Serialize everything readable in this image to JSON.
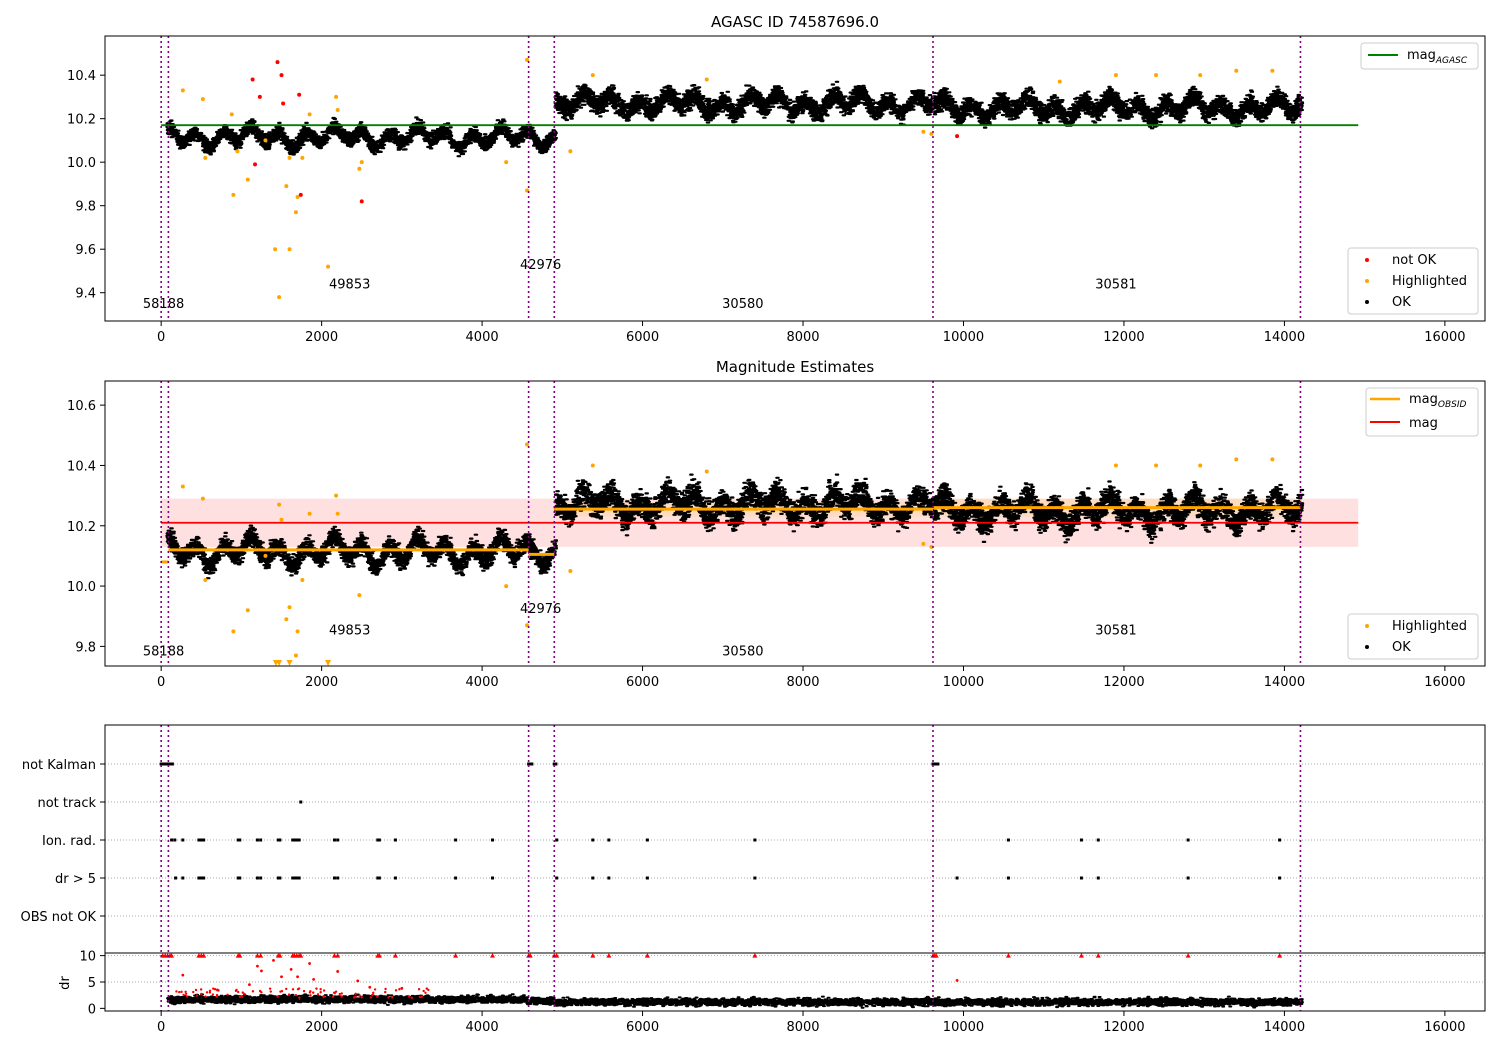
{
  "chart_data": [
    {
      "type": "scatter",
      "title": "AGASC ID 74587696.0",
      "xlim": [
        -700,
        16500
      ],
      "ylim": [
        9.27,
        10.58
      ],
      "xticks": [
        0,
        2000,
        4000,
        6000,
        8000,
        10000,
        12000,
        14000,
        16000
      ],
      "xtick_labels": [
        "0",
        "2000",
        "4000",
        "6000",
        "8000",
        "10000",
        "12000",
        "14000",
        "16000"
      ],
      "yticks": [
        9.4,
        9.6,
        9.8,
        10.0,
        10.2,
        10.4
      ],
      "ytick_labels": [
        "9.4",
        "9.6",
        "9.8",
        "10.0",
        "10.2",
        "10.4"
      ],
      "vlines": [
        0,
        90,
        4580,
        4900,
        9620,
        14200
      ],
      "obsid_labels": [
        {
          "text": "58188",
          "x": 30,
          "y": 9.33
        },
        {
          "text": "49853",
          "x": 2350,
          "y": 9.42
        },
        {
          "text": "42976",
          "x": 4730,
          "y": 9.51
        },
        {
          "text": "30580",
          "x": 7250,
          "y": 9.33
        },
        {
          "text": "30581",
          "x": 11900,
          "y": 9.42
        }
      ],
      "reference_lines": [
        {
          "name": "mag_AGASC",
          "y": 10.17,
          "x_range": [
            0,
            14920
          ],
          "color": "#008000"
        }
      ],
      "segments": [
        {
          "x_range": [
            80,
            4920
          ],
          "mean": 10.115,
          "spread": 0.032
        },
        {
          "x_range": [
            4920,
            9640
          ],
          "mean": 10.27,
          "spread": 0.045
        },
        {
          "x_range": [
            9640,
            14220
          ],
          "mean": 10.25,
          "spread": 0.045
        }
      ],
      "series": [
        {
          "name": "not OK",
          "color": "#ff0000",
          "points": [
            [
              1450,
              10.46
            ],
            [
              1500,
              10.4
            ],
            [
              1140,
              10.38
            ],
            [
              1230,
              10.3
            ],
            [
              1720,
              10.31
            ],
            [
              1170,
              9.99
            ],
            [
              1740,
              9.85
            ],
            [
              2500,
              9.82
            ],
            [
              9920,
              10.12
            ],
            [
              1520,
              10.27
            ]
          ]
        },
        {
          "name": "Highlighted",
          "color": "#ffa500",
          "points": [
            [
              270,
              10.33
            ],
            [
              520,
              10.29
            ],
            [
              880,
              10.22
            ],
            [
              900,
              9.85
            ],
            [
              1080,
              9.92
            ],
            [
              1420,
              9.6
            ],
            [
              1470,
              9.38
            ],
            [
              1560,
              9.89
            ],
            [
              1600,
              9.6
            ],
            [
              1600,
              10.02
            ],
            [
              1680,
              9.77
            ],
            [
              1700,
              9.84
            ],
            [
              1760,
              10.02
            ],
            [
              1850,
              10.22
            ],
            [
              2080,
              9.52
            ],
            [
              2180,
              10.3
            ],
            [
              2200,
              10.24
            ],
            [
              2470,
              9.97
            ],
            [
              2500,
              10.0
            ],
            [
              4560,
              10.47
            ],
            [
              4560,
              9.87
            ],
            [
              4300,
              10.0
            ],
            [
              5100,
              10.05
            ],
            [
              5380,
              10.4
            ],
            [
              6800,
              10.38
            ],
            [
              9500,
              10.14
            ],
            [
              9600,
              10.13
            ],
            [
              11900,
              10.4
            ],
            [
              12400,
              10.4
            ],
            [
              13400,
              10.42
            ],
            [
              13850,
              10.42
            ],
            [
              12950,
              10.4
            ],
            [
              11200,
              10.37
            ],
            [
              550,
              10.02
            ],
            [
              1300,
              10.1
            ],
            [
              950,
              10.05
            ]
          ]
        }
      ],
      "ok_label": "OK",
      "legend_lines": [
        "mag_AGASC"
      ],
      "legend_scatter": [
        "not OK",
        "Highlighted",
        "OK"
      ]
    },
    {
      "type": "scatter",
      "title": "Magnitude Estimates",
      "xlim": [
        -700,
        16500
      ],
      "ylim": [
        9.735,
        10.68
      ],
      "xticks": [
        0,
        2000,
        4000,
        6000,
        8000,
        10000,
        12000,
        14000,
        16000
      ],
      "xtick_labels": [
        "0",
        "2000",
        "4000",
        "6000",
        "8000",
        "10000",
        "12000",
        "14000",
        "16000"
      ],
      "yticks": [
        9.8,
        10.0,
        10.2,
        10.4,
        10.6
      ],
      "ytick_labels": [
        "9.8",
        "10.0",
        "10.2",
        "10.4",
        "10.6"
      ],
      "vlines": [
        0,
        90,
        4580,
        4900,
        9620,
        14200
      ],
      "obsid_labels": [
        {
          "text": "58188",
          "x": 30,
          "y": 9.77
        },
        {
          "text": "49853",
          "x": 2350,
          "y": 9.84
        },
        {
          "text": "42976",
          "x": 4730,
          "y": 9.91
        },
        {
          "text": "30580",
          "x": 7250,
          "y": 9.77
        },
        {
          "text": "30581",
          "x": 11900,
          "y": 9.84
        }
      ],
      "mag_band": {
        "low": 10.13,
        "high": 10.29,
        "x_range": [
          0,
          14920
        ],
        "color": "#ffcccc"
      },
      "obsid_bands": [
        {
          "x_range": [
            4920,
            9640
          ],
          "low": 10.23,
          "high": 10.28
        },
        {
          "x_range": [
            9640,
            14220
          ],
          "low": 10.23,
          "high": 10.29
        }
      ],
      "reference_lines": [
        {
          "name": "mag",
          "y": 10.21,
          "x_range": [
            0,
            14920
          ],
          "color": "#ff0000"
        }
      ],
      "obsid_lines": [
        {
          "x_range": [
            0,
            90
          ],
          "y": 10.08
        },
        {
          "x_range": [
            90,
            4580
          ],
          "y": 10.12
        },
        {
          "x_range": [
            4580,
            4900
          ],
          "y": 10.105
        },
        {
          "x_range": [
            4900,
            9620
          ],
          "y": 10.255
        },
        {
          "x_range": [
            9620,
            14200
          ],
          "y": 10.26
        }
      ],
      "segments": [
        {
          "x_range": [
            80,
            4920
          ],
          "mean": 10.115,
          "spread": 0.032
        },
        {
          "x_range": [
            4920,
            9640
          ],
          "mean": 10.27,
          "spread": 0.045
        },
        {
          "x_range": [
            9640,
            14220
          ],
          "mean": 10.25,
          "spread": 0.045
        }
      ],
      "series": [
        {
          "name": "Highlighted",
          "color": "#ffa500",
          "points": [
            [
              270,
              10.33
            ],
            [
              520,
              10.29
            ],
            [
              900,
              9.85
            ],
            [
              1080,
              9.92
            ],
            [
              1470,
              10.27
            ],
            [
              1560,
              9.89
            ],
            [
              1600,
              9.93
            ],
            [
              1680,
              9.77
            ],
            [
              1700,
              9.85
            ],
            [
              1760,
              10.02
            ],
            [
              1850,
              10.24
            ],
            [
              2180,
              10.3
            ],
            [
              2200,
              10.24
            ],
            [
              2470,
              9.97
            ],
            [
              4560,
              10.47
            ],
            [
              4560,
              9.87
            ],
            [
              4300,
              10.0
            ],
            [
              5100,
              10.05
            ],
            [
              5380,
              10.4
            ],
            [
              6800,
              10.38
            ],
            [
              9500,
              10.14
            ],
            [
              9600,
              10.13
            ],
            [
              11900,
              10.4
            ],
            [
              12400,
              10.4
            ],
            [
              13400,
              10.42
            ],
            [
              13850,
              10.42
            ],
            [
              12950,
              10.4
            ],
            [
              550,
              10.02
            ],
            [
              1300,
              10.1
            ],
            [
              1500,
              10.22
            ]
          ]
        },
        {
          "name": "Highlighted (clipped)",
          "color": "#ffa500",
          "points": [
            [
              1430,
              9.735
            ],
            [
              1470,
              9.735
            ],
            [
              1600,
              9.735
            ],
            [
              2080,
              9.735
            ]
          ]
        }
      ],
      "ok_label": "OK",
      "legend_lines": [
        "mag_OBSID",
        "mag"
      ],
      "legend_scatter": [
        "Highlighted",
        "OK"
      ]
    },
    {
      "type": "scatter",
      "title": "",
      "xlim": [
        -700,
        16500
      ],
      "xticks": [
        0,
        2000,
        4000,
        6000,
        8000,
        10000,
        12000,
        14000,
        16000
      ],
      "xtick_labels": [
        "0",
        "2000",
        "4000",
        "6000",
        "8000",
        "10000",
        "12000",
        "14000",
        "16000"
      ],
      "vlines": [
        0,
        90,
        4580,
        4900,
        9620,
        14200
      ],
      "flag_rows": [
        {
          "label": "not Kalman",
          "points": [
            0,
            20,
            40,
            60,
            80,
            100,
            120,
            140,
            4580,
            4600,
            4620,
            4900,
            4920,
            9620,
            9640,
            9660,
            9680
          ]
        },
        {
          "label": "not track",
          "points": [
            1740
          ]
        },
        {
          "label": "Ion. rad.",
          "points": [
            130,
            170,
            270,
            470,
            500,
            530,
            960,
            980,
            1200,
            1240,
            1460,
            1480,
            1640,
            1660,
            1690,
            1720,
            2160,
            2200,
            2700,
            2720,
            2920,
            3670,
            4130,
            4930,
            5380,
            5580,
            6060,
            7400,
            10560,
            11470,
            11680,
            12800,
            13940
          ]
        },
        {
          "label": "dr > 5",
          "points": [
            180,
            270,
            470,
            500,
            530,
            960,
            980,
            1200,
            1240,
            1460,
            1480,
            1640,
            1660,
            1690,
            1720,
            2160,
            2200,
            2700,
            2720,
            2920,
            3670,
            4130,
            4930,
            5380,
            5580,
            6060,
            7400,
            9920,
            10560,
            11470,
            11680,
            12800,
            13940
          ]
        },
        {
          "label": "OBS not OK",
          "points": []
        }
      ],
      "dr": {
        "ylabel": "dr",
        "yticks": [
          0,
          5,
          10
        ],
        "ytick_labels": [
          "0",
          "5",
          "10"
        ],
        "ylim": [
          -0.5,
          10.5
        ],
        "capped_points": [
          20,
          50,
          80,
          110,
          130,
          470,
          500,
          530,
          960,
          980,
          1200,
          1240,
          1460,
          1480,
          1640,
          1660,
          1690,
          1720,
          1740,
          2160,
          2200,
          2700,
          2720,
          2920,
          3670,
          4130,
          4580,
          4600,
          4900,
          4930,
          5380,
          5580,
          6060,
          7400,
          9620,
          9640,
          9660,
          10560,
          11470,
          11680,
          12800,
          13940
        ],
        "red_points": [
          [
            270,
            6.3
          ],
          [
            1200,
            8.0
          ],
          [
            1250,
            7.1
          ],
          [
            1400,
            9.1
          ],
          [
            1500,
            6.0
          ],
          [
            1620,
            7.4
          ],
          [
            1700,
            6.0
          ],
          [
            1850,
            8.5
          ],
          [
            1900,
            5.5
          ],
          [
            2200,
            7.0
          ],
          [
            2450,
            5.2
          ],
          [
            9920,
            5.3
          ],
          [
            2600,
            4.0
          ],
          [
            1100,
            4.5
          ],
          [
            700,
            3.5
          ],
          [
            3000,
            3.8
          ]
        ]
      }
    }
  ]
}
